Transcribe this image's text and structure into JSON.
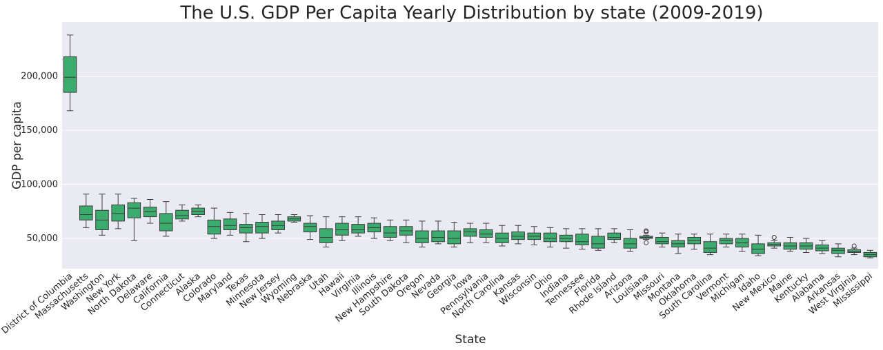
{
  "chart_data": {
    "type": "box",
    "title": "The U.S. GDP Per Capita Yearly Distribution by state (2009-2019)",
    "xlabel": "State",
    "ylabel": "GDP per capita",
    "ylim": [
      22000,
      250000
    ],
    "yticks": [
      50000,
      100000,
      150000,
      200000
    ],
    "ytick_labels": [
      "50,000",
      "100,000",
      "150,000",
      "200,000"
    ],
    "grid": true,
    "colors": {
      "plot_bg": "#eaeaf2",
      "box_fill": "#3cab6e",
      "line": "#3a3a3a",
      "grid": "#ffffff",
      "text": "#262626"
    },
    "states": [
      {
        "name": "District of Columbia",
        "whislo": 168000,
        "q1": 185000,
        "med": 199000,
        "q3": 218000,
        "whishi": 238000,
        "fliers": []
      },
      {
        "name": "Massachusetts",
        "whislo": 60000,
        "q1": 67000,
        "med": 72000,
        "q3": 80000,
        "whishi": 91000,
        "fliers": []
      },
      {
        "name": "Washington",
        "whislo": 53000,
        "q1": 58000,
        "med": 67000,
        "q3": 76000,
        "whishi": 91000,
        "fliers": []
      },
      {
        "name": "New York",
        "whislo": 59000,
        "q1": 66000,
        "med": 73000,
        "q3": 81000,
        "whishi": 91000,
        "fliers": []
      },
      {
        "name": "North Dakota",
        "whislo": 48000,
        "q1": 69000,
        "med": 78000,
        "q3": 83000,
        "whishi": 87000,
        "fliers": []
      },
      {
        "name": "Delaware",
        "whislo": 64000,
        "q1": 70000,
        "med": 75000,
        "q3": 79000,
        "whishi": 86000,
        "fliers": []
      },
      {
        "name": "California",
        "whislo": 52000,
        "q1": 57000,
        "med": 64000,
        "q3": 73000,
        "whishi": 84000,
        "fliers": []
      },
      {
        "name": "Connecticut",
        "whislo": 66000,
        "q1": 68000,
        "med": 71000,
        "q3": 76000,
        "whishi": 81000,
        "fliers": []
      },
      {
        "name": "Alaska",
        "whislo": 70000,
        "q1": 72000,
        "med": 75000,
        "q3": 78000,
        "whishi": 81000,
        "fliers": []
      },
      {
        "name": "Colorado",
        "whislo": 50000,
        "q1": 54000,
        "med": 61000,
        "q3": 67000,
        "whishi": 78000,
        "fliers": []
      },
      {
        "name": "Maryland",
        "whislo": 53000,
        "q1": 58000,
        "med": 62000,
        "q3": 68000,
        "whishi": 74000,
        "fliers": []
      },
      {
        "name": "Texas",
        "whislo": 47000,
        "q1": 55000,
        "med": 60000,
        "q3": 63000,
        "whishi": 73000,
        "fliers": []
      },
      {
        "name": "Minnesota",
        "whislo": 50000,
        "q1": 55000,
        "med": 61000,
        "q3": 65000,
        "whishi": 72000,
        "fliers": []
      },
      {
        "name": "New Jersey",
        "whislo": 55000,
        "q1": 58000,
        "med": 62000,
        "q3": 66000,
        "whishi": 72000,
        "fliers": []
      },
      {
        "name": "Wyoming",
        "whislo": 65000,
        "q1": 66000,
        "med": 68000,
        "q3": 70000,
        "whishi": 72000,
        "fliers": []
      },
      {
        "name": "Nebraska",
        "whislo": 49000,
        "q1": 56000,
        "med": 61000,
        "q3": 64000,
        "whishi": 71000,
        "fliers": []
      },
      {
        "name": "Utah",
        "whislo": 42000,
        "q1": 46000,
        "med": 51000,
        "q3": 59000,
        "whishi": 70000,
        "fliers": []
      },
      {
        "name": "Hawaii",
        "whislo": 48000,
        "q1": 53000,
        "med": 58000,
        "q3": 64000,
        "whishi": 70000,
        "fliers": []
      },
      {
        "name": "Virginia",
        "whislo": 52000,
        "q1": 55000,
        "med": 58000,
        "q3": 63000,
        "whishi": 70000,
        "fliers": []
      },
      {
        "name": "Illinois",
        "whislo": 50000,
        "q1": 56000,
        "med": 60000,
        "q3": 64000,
        "whishi": 69000,
        "fliers": []
      },
      {
        "name": "New Hampshire",
        "whislo": 48000,
        "q1": 51000,
        "med": 55000,
        "q3": 61000,
        "whishi": 67000,
        "fliers": []
      },
      {
        "name": "South Dakota",
        "whislo": 46000,
        "q1": 53000,
        "med": 57000,
        "q3": 61000,
        "whishi": 67000,
        "fliers": []
      },
      {
        "name": "Oregon",
        "whislo": 42000,
        "q1": 46000,
        "med": 50000,
        "q3": 57000,
        "whishi": 66000,
        "fliers": []
      },
      {
        "name": "Nevada",
        "whislo": 45000,
        "q1": 47000,
        "med": 51000,
        "q3": 57000,
        "whishi": 66000,
        "fliers": []
      },
      {
        "name": "Georgia",
        "whislo": 42000,
        "q1": 45000,
        "med": 50000,
        "q3": 57000,
        "whishi": 65000,
        "fliers": []
      },
      {
        "name": "Iowa",
        "whislo": 46000,
        "q1": 52000,
        "med": 56000,
        "q3": 59000,
        "whishi": 64000,
        "fliers": []
      },
      {
        "name": "Pennsylvania",
        "whislo": 46000,
        "q1": 51000,
        "med": 54000,
        "q3": 58000,
        "whishi": 64000,
        "fliers": []
      },
      {
        "name": "North Carolina",
        "whislo": 43000,
        "q1": 46000,
        "med": 50000,
        "q3": 55000,
        "whishi": 62000,
        "fliers": []
      },
      {
        "name": "Kansas",
        "whislo": 45000,
        "q1": 49000,
        "med": 52000,
        "q3": 56000,
        "whishi": 62000,
        "fliers": []
      },
      {
        "name": "Wisconsin",
        "whislo": 44000,
        "q1": 49000,
        "med": 52000,
        "q3": 55000,
        "whishi": 61000,
        "fliers": []
      },
      {
        "name": "Ohio",
        "whislo": 42000,
        "q1": 47000,
        "med": 50000,
        "q3": 55000,
        "whishi": 60000,
        "fliers": []
      },
      {
        "name": "Indiana",
        "whislo": 41000,
        "q1": 47000,
        "med": 50000,
        "q3": 53000,
        "whishi": 59000,
        "fliers": []
      },
      {
        "name": "Tennessee",
        "whislo": 40000,
        "q1": 44000,
        "med": 47000,
        "q3": 54000,
        "whishi": 59000,
        "fliers": []
      },
      {
        "name": "Florida",
        "whislo": 39000,
        "q1": 41000,
        "med": 45000,
        "q3": 52000,
        "whishi": 59000,
        "fliers": []
      },
      {
        "name": "Rhode Island",
        "whislo": 46000,
        "q1": 49000,
        "med": 51000,
        "q3": 55000,
        "whishi": 59000,
        "fliers": []
      },
      {
        "name": "Arizona",
        "whislo": 38000,
        "q1": 41000,
        "med": 45000,
        "q3": 50000,
        "whishi": 58000,
        "fliers": []
      },
      {
        "name": "Louisiana",
        "whislo": 49000,
        "q1": 50000,
        "med": 51000,
        "q3": 52000,
        "whishi": 53000,
        "fliers": [
          46000,
          56000,
          57000
        ]
      },
      {
        "name": "Missouri",
        "whislo": 42000,
        "q1": 45000,
        "med": 47000,
        "q3": 51000,
        "whishi": 55000,
        "fliers": []
      },
      {
        "name": "Montana",
        "whislo": 36000,
        "q1": 42000,
        "med": 45000,
        "q3": 48000,
        "whishi": 54000,
        "fliers": []
      },
      {
        "name": "Oklahoma",
        "whislo": 40000,
        "q1": 45000,
        "med": 48000,
        "q3": 51000,
        "whishi": 54000,
        "fliers": []
      },
      {
        "name": "South Carolina",
        "whislo": 35000,
        "q1": 37000,
        "med": 41000,
        "q3": 47000,
        "whishi": 54000,
        "fliers": []
      },
      {
        "name": "Vermont",
        "whislo": 42000,
        "q1": 45000,
        "med": 48000,
        "q3": 50000,
        "whishi": 54000,
        "fliers": []
      },
      {
        "name": "Michigan",
        "whislo": 38000,
        "q1": 42000,
        "med": 46000,
        "q3": 50000,
        "whishi": 54000,
        "fliers": []
      },
      {
        "name": "Idaho",
        "whislo": 34000,
        "q1": 36000,
        "med": 40000,
        "q3": 45000,
        "whishi": 53000,
        "fliers": []
      },
      {
        "name": "New Mexico",
        "whislo": 41000,
        "q1": 43000,
        "med": 44500,
        "q3": 46000,
        "whishi": 48000,
        "fliers": [
          51000
        ]
      },
      {
        "name": "Maine",
        "whislo": 38000,
        "q1": 40000,
        "med": 43000,
        "q3": 46000,
        "whishi": 51000,
        "fliers": []
      },
      {
        "name": "Kentucky",
        "whislo": 37000,
        "q1": 40000,
        "med": 43000,
        "q3": 46000,
        "whishi": 50000,
        "fliers": []
      },
      {
        "name": "Alabama",
        "whislo": 36000,
        "q1": 38500,
        "med": 41000,
        "q3": 44000,
        "whishi": 48000,
        "fliers": []
      },
      {
        "name": "Arkansas",
        "whislo": 33000,
        "q1": 36000,
        "med": 39000,
        "q3": 41000,
        "whishi": 45000,
        "fliers": []
      },
      {
        "name": "West Virginia",
        "whislo": 35000,
        "q1": 37000,
        "med": 38000,
        "q3": 39500,
        "whishi": 41000,
        "fliers": [
          43000
        ]
      },
      {
        "name": "Mississippi",
        "whislo": 32000,
        "q1": 33000,
        "med": 35000,
        "q3": 37000,
        "whishi": 39000,
        "fliers": []
      }
    ]
  }
}
